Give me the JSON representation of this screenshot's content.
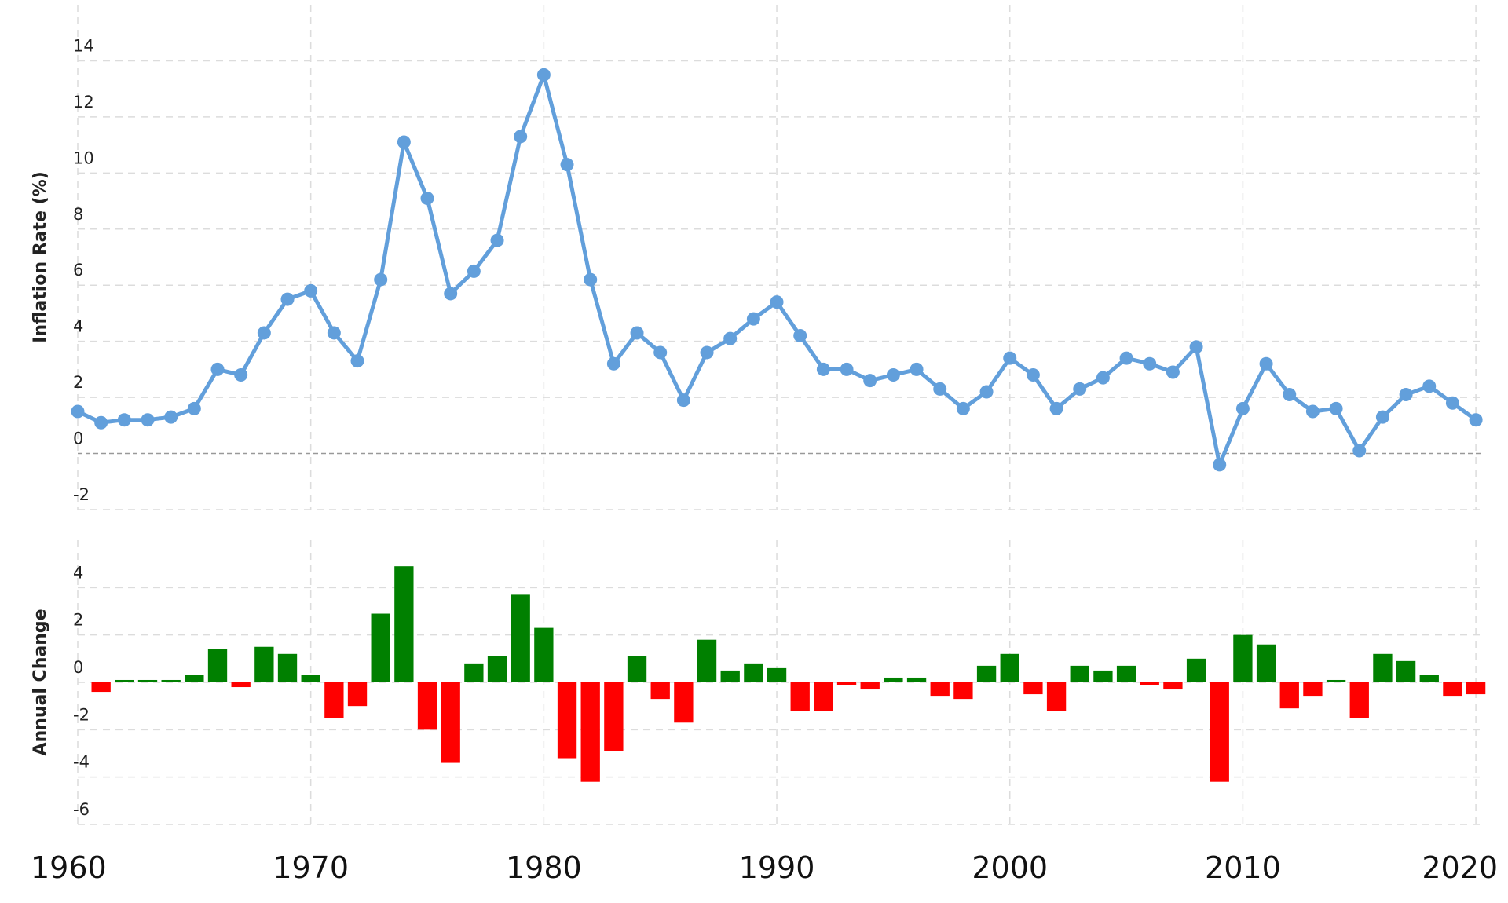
{
  "chart_data": [
    {
      "type": "line",
      "ylabel": "Inflation Rate (%)",
      "color": "#629fdb",
      "grid": true,
      "x": [
        1960,
        1961,
        1962,
        1963,
        1964,
        1965,
        1966,
        1967,
        1968,
        1969,
        1970,
        1971,
        1972,
        1973,
        1974,
        1975,
        1976,
        1977,
        1978,
        1979,
        1980,
        1981,
        1982,
        1983,
        1984,
        1985,
        1986,
        1987,
        1988,
        1989,
        1990,
        1991,
        1992,
        1993,
        1994,
        1995,
        1996,
        1997,
        1998,
        1999,
        2000,
        2001,
        2002,
        2003,
        2004,
        2005,
        2006,
        2007,
        2008,
        2009,
        2010,
        2011,
        2012,
        2013,
        2014,
        2015,
        2016,
        2017,
        2018,
        2019,
        2020
      ],
      "values": [
        1.5,
        1.1,
        1.2,
        1.2,
        1.3,
        1.6,
        3.0,
        2.8,
        4.3,
        5.5,
        5.8,
        4.3,
        3.3,
        6.2,
        11.1,
        9.1,
        5.7,
        6.5,
        7.6,
        11.3,
        13.5,
        10.3,
        6.2,
        3.2,
        4.3,
        3.6,
        1.9,
        3.6,
        4.1,
        4.8,
        5.4,
        4.2,
        3.0,
        3.0,
        2.6,
        2.8,
        3.0,
        2.3,
        1.6,
        2.2,
        3.4,
        2.8,
        1.6,
        2.3,
        2.7,
        3.4,
        3.2,
        2.9,
        3.8,
        -0.4,
        1.6,
        3.2,
        2.1,
        1.5,
        1.6,
        0.1,
        1.3,
        2.1,
        2.4,
        1.8,
        1.2
      ],
      "xlim": [
        1960,
        2020.3
      ],
      "ylim": [
        -2,
        16
      ],
      "yticks": [
        -2,
        0,
        2,
        4,
        6,
        8,
        10,
        12,
        14
      ]
    },
    {
      "type": "bar",
      "ylabel": "Annual Change",
      "color": "#008000",
      "negative_color": "#ff0000",
      "grid": true,
      "x": [
        1961,
        1962,
        1963,
        1964,
        1965,
        1966,
        1967,
        1968,
        1969,
        1970,
        1971,
        1972,
        1973,
        1974,
        1975,
        1976,
        1977,
        1978,
        1979,
        1980,
        1981,
        1982,
        1983,
        1984,
        1985,
        1986,
        1987,
        1988,
        1989,
        1990,
        1991,
        1992,
        1993,
        1994,
        1995,
        1996,
        1997,
        1998,
        1999,
        2000,
        2001,
        2002,
        2003,
        2004,
        2005,
        2006,
        2007,
        2008,
        2009,
        2010,
        2011,
        2012,
        2013,
        2014,
        2015,
        2016,
        2017,
        2018,
        2019,
        2020
      ],
      "values": [
        -0.4,
        0.1,
        0.1,
        0.1,
        0.3,
        1.4,
        -0.2,
        1.5,
        1.2,
        0.3,
        -1.5,
        -1.0,
        2.9,
        4.9,
        -2.0,
        -3.4,
        0.8,
        1.1,
        3.7,
        2.3,
        -3.2,
        -4.2,
        -2.9,
        1.1,
        -0.7,
        -1.7,
        1.8,
        0.5,
        0.8,
        0.6,
        -1.2,
        -1.2,
        -0.1,
        -0.3,
        0.2,
        0.2,
        -0.6,
        -0.7,
        0.7,
        1.2,
        -0.5,
        -1.2,
        0.7,
        0.5,
        0.7,
        -0.1,
        -0.3,
        1.0,
        -4.2,
        2.0,
        1.6,
        -1.1,
        -0.6,
        0.1,
        -1.5,
        1.2,
        0.9,
        0.3,
        -0.6,
        -0.5
      ],
      "xlim": [
        1960,
        2020.3
      ],
      "ylim": [
        -6,
        6
      ],
      "yticks": [
        -6,
        -4,
        -2,
        0,
        2,
        4
      ],
      "xticks": [
        1960,
        1970,
        1980,
        1990,
        2000,
        2010,
        2020
      ]
    }
  ]
}
